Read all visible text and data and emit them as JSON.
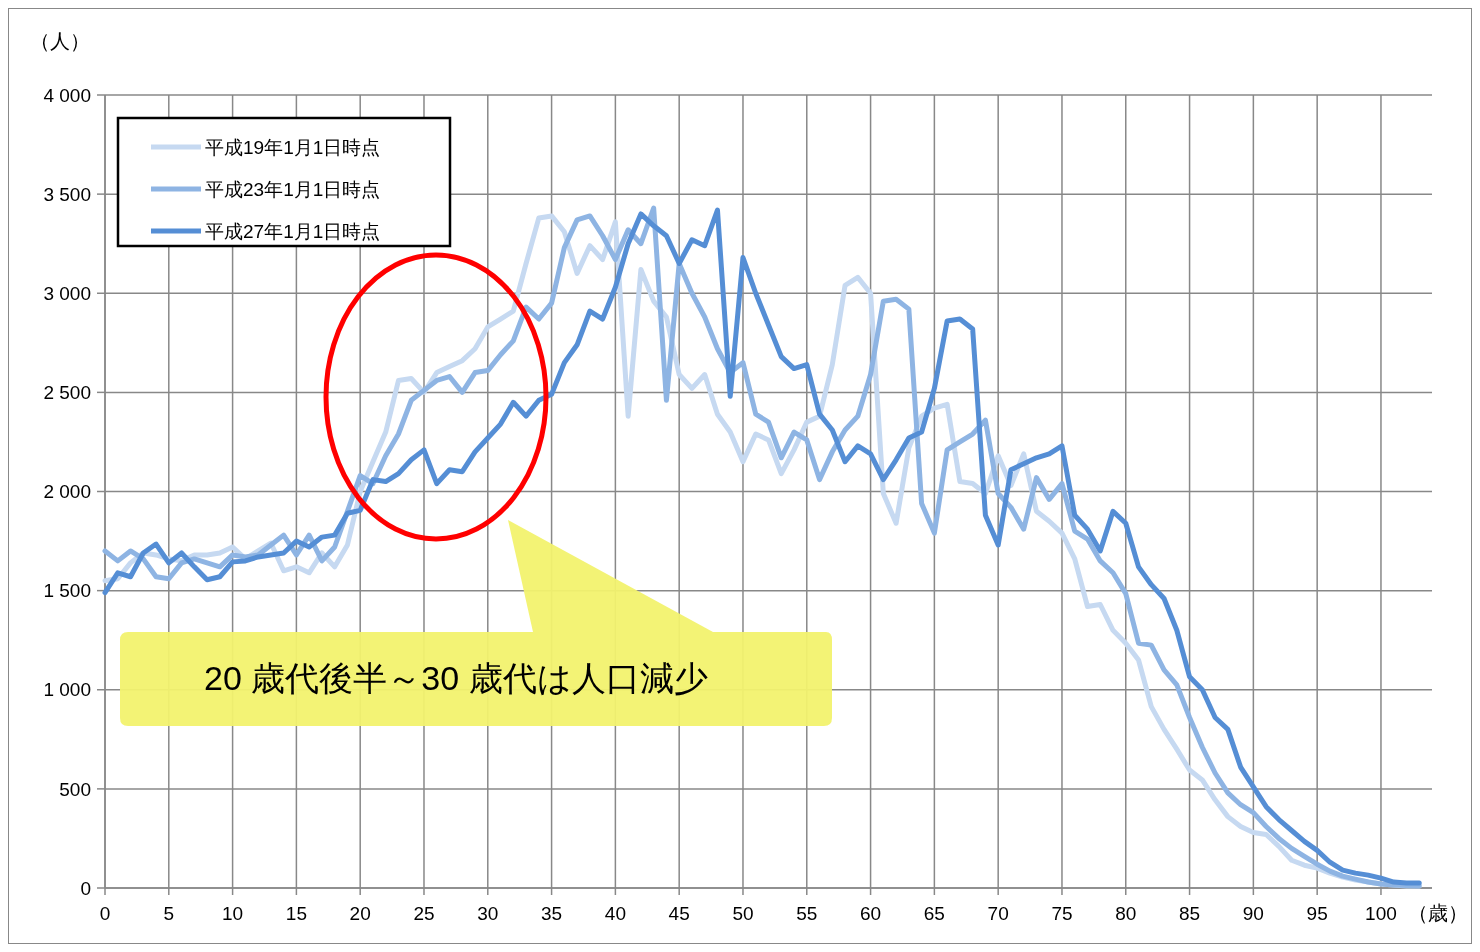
{
  "chart_data": {
    "type": "line",
    "xlabel": "（歳）",
    "ylabel": "（人）",
    "x": [
      0,
      1,
      2,
      3,
      4,
      5,
      6,
      7,
      8,
      9,
      10,
      11,
      12,
      13,
      14,
      15,
      16,
      17,
      18,
      19,
      20,
      21,
      22,
      23,
      24,
      25,
      26,
      27,
      28,
      29,
      30,
      31,
      32,
      33,
      34,
      35,
      36,
      37,
      38,
      39,
      40,
      41,
      42,
      43,
      44,
      45,
      46,
      47,
      48,
      49,
      50,
      51,
      52,
      53,
      54,
      55,
      56,
      57,
      58,
      59,
      60,
      61,
      62,
      63,
      64,
      65,
      66,
      67,
      68,
      69,
      70,
      71,
      72,
      73,
      74,
      75,
      76,
      77,
      78,
      79,
      80,
      81,
      82,
      83,
      84,
      85,
      86,
      87,
      88,
      89,
      90,
      91,
      92,
      93,
      94,
      95,
      96,
      97,
      98,
      99,
      100,
      101,
      102,
      103
    ],
    "series": [
      {
        "name": "平成19年1月1日時点",
        "color": "#c6d9f1",
        "values": [
          1550,
          1560,
          1640,
          1690,
          1680,
          1660,
          1650,
          1680,
          1680,
          1690,
          1720,
          1660,
          1700,
          1740,
          1600,
          1620,
          1590,
          1690,
          1620,
          1730,
          2000,
          2150,
          2300,
          2560,
          2570,
          2500,
          2600,
          2630,
          2660,
          2720,
          2830,
          2870,
          2910,
          3150,
          3380,
          3390,
          3310,
          3100,
          3240,
          3170,
          3360,
          2380,
          3120,
          2960,
          2880,
          2590,
          2520,
          2590,
          2390,
          2300,
          2150,
          2290,
          2260,
          2090,
          2210,
          2350,
          2380,
          2640,
          3040,
          3080,
          3000,
          1990,
          1840,
          2220,
          2380,
          2420,
          2440,
          2050,
          2040,
          1990,
          2180,
          2030,
          2190,
          1900,
          1850,
          1790,
          1660,
          1420,
          1430,
          1300,
          1235,
          1150,
          915,
          800,
          700,
          595,
          545,
          445,
          360,
          310,
          280,
          270,
          210,
          140,
          115,
          100,
          75,
          55,
          40,
          30,
          20,
          15,
          10,
          10
        ]
      },
      {
        "name": "平成23年1月1日時点",
        "color": "#8eb4e3",
        "values": [
          1700,
          1650,
          1700,
          1660,
          1570,
          1560,
          1640,
          1660,
          1640,
          1620,
          1680,
          1670,
          1680,
          1730,
          1780,
          1680,
          1780,
          1650,
          1720,
          1900,
          2080,
          2040,
          2180,
          2290,
          2460,
          2510,
          2560,
          2580,
          2500,
          2600,
          2610,
          2690,
          2760,
          2930,
          2870,
          2950,
          3230,
          3370,
          3390,
          3290,
          3170,
          3320,
          3250,
          3430,
          2460,
          3150,
          3000,
          2880,
          2720,
          2600,
          2650,
          2390,
          2350,
          2170,
          2300,
          2260,
          2060,
          2200,
          2310,
          2380,
          2590,
          2960,
          2970,
          2920,
          1940,
          1790,
          2210,
          2250,
          2290,
          2360,
          1990,
          1920,
          1810,
          2070,
          1960,
          2040,
          1800,
          1760,
          1650,
          1590,
          1485,
          1235,
          1225,
          1100,
          1025,
          860,
          710,
          580,
          480,
          420,
          380,
          310,
          250,
          200,
          160,
          120,
          85,
          60,
          45,
          30,
          20,
          15,
          12,
          10
        ]
      },
      {
        "name": "平成27年1月1日時点",
        "color": "#558ed5",
        "values": [
          1490,
          1590,
          1570,
          1690,
          1735,
          1640,
          1690,
          1620,
          1555,
          1570,
          1645,
          1650,
          1670,
          1680,
          1690,
          1750,
          1720,
          1770,
          1780,
          1890,
          1905,
          2060,
          2050,
          2090,
          2160,
          2210,
          2040,
          2110,
          2100,
          2200,
          2270,
          2340,
          2450,
          2380,
          2460,
          2490,
          2650,
          2740,
          2910,
          2870,
          3030,
          3250,
          3400,
          3340,
          3290,
          3150,
          3270,
          3240,
          3420,
          2480,
          3180,
          3000,
          2840,
          2680,
          2620,
          2640,
          2390,
          2310,
          2150,
          2230,
          2190,
          2060,
          2160,
          2270,
          2300,
          2520,
          2860,
          2870,
          2820,
          1880,
          1730,
          2110,
          2140,
          2170,
          2190,
          2230,
          1880,
          1810,
          1700,
          1900,
          1840,
          1620,
          1530,
          1460,
          1300,
          1065,
          1000,
          860,
          800,
          610,
          510,
          410,
          345,
          290,
          235,
          190,
          130,
          90,
          75,
          65,
          50,
          30,
          25,
          25
        ]
      }
    ],
    "xlim": [
      0,
      104
    ],
    "xticks": [
      0,
      5,
      10,
      15,
      20,
      25,
      30,
      35,
      40,
      45,
      50,
      55,
      60,
      65,
      70,
      75,
      80,
      85,
      90,
      95,
      100
    ],
    "ylim": [
      0,
      4000
    ],
    "yticks": [
      {
        "value": 0,
        "label": "0"
      },
      {
        "value": 500,
        "label": "500"
      },
      {
        "value": 1000,
        "label": "1 000"
      },
      {
        "value": 1500,
        "label": "1 500"
      },
      {
        "value": 2000,
        "label": "2 000"
      },
      {
        "value": 2500,
        "label": "2 500"
      },
      {
        "value": 3000,
        "label": "3 000"
      },
      {
        "value": 3500,
        "label": "3 500"
      },
      {
        "value": 4000,
        "label": "4 000"
      }
    ],
    "grid": true,
    "legend": "top left",
    "marker": "none",
    "line_style": "solid",
    "annotations": [
      "20 歳代後半～30 歳代は人口減少"
    ]
  }
}
